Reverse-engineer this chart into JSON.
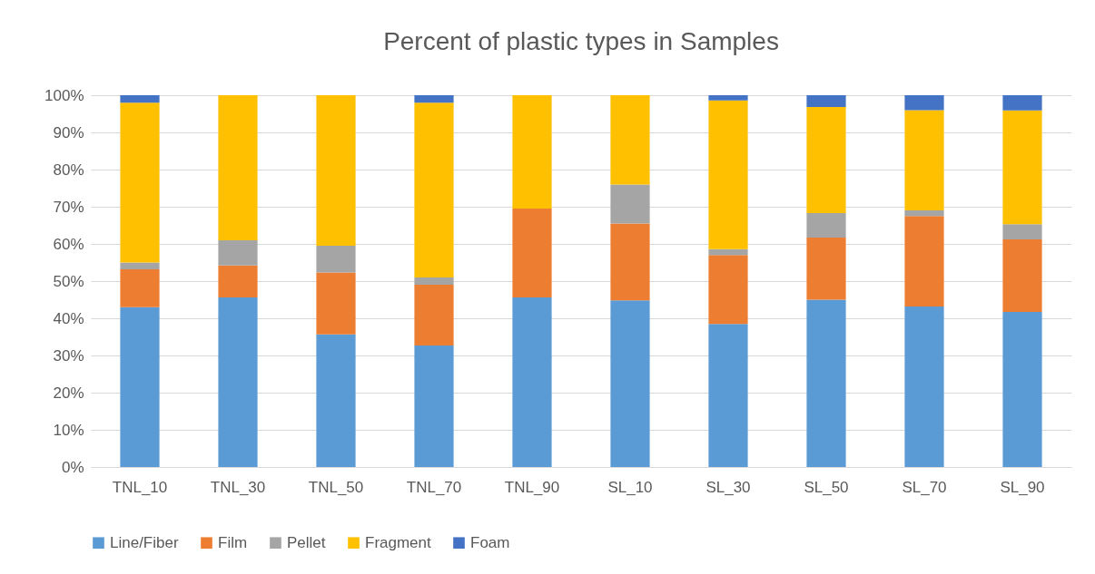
{
  "chart_data": {
    "type": "bar",
    "stacked": true,
    "title": "Percent of plastic types  in Samples",
    "categories": [
      "TNL_10",
      "TNL_30",
      "TNL_50",
      "TNL_70",
      "TNL_90",
      "SL_10",
      "SL_30",
      "SL_50",
      "SL_70",
      "SL_90"
    ],
    "series": [
      {
        "name": "Line/Fiber",
        "color": "#5b9bd5",
        "values": [
          43,
          45.6,
          35.7,
          32.7,
          45.6,
          44.8,
          38.5,
          45,
          43.2,
          41.7
        ]
      },
      {
        "name": "Film",
        "color": "#ed7d31",
        "values": [
          10.2,
          8.6,
          16.6,
          16.3,
          23.9,
          20.7,
          18.5,
          16.7,
          24.3,
          19.5
        ]
      },
      {
        "name": "Pellet",
        "color": "#a5a5a5",
        "values": [
          1.8,
          6.8,
          7.2,
          2,
          0,
          10.5,
          1.6,
          6.6,
          1.5,
          4.1
        ]
      },
      {
        "name": "Fragment",
        "color": "#ffc000",
        "values": [
          43,
          39,
          40.5,
          47,
          30.5,
          24,
          40,
          28.5,
          27,
          30.6
        ]
      },
      {
        "name": "Foam",
        "color": "#4472c4",
        "values": [
          2,
          0,
          0,
          2,
          0,
          0,
          1.4,
          3.2,
          4,
          4.1
        ]
      }
    ],
    "ylim": [
      0,
      100
    ],
    "yticks": [
      {
        "value": 0,
        "label": "0%"
      },
      {
        "value": 10,
        "label": "10%"
      },
      {
        "value": 20,
        "label": "20%"
      },
      {
        "value": 30,
        "label": "30%"
      },
      {
        "value": 40,
        "label": "40%"
      },
      {
        "value": 50,
        "label": "50%"
      },
      {
        "value": 60,
        "label": "60%"
      },
      {
        "value": 70,
        "label": "70%"
      },
      {
        "value": 80,
        "label": "80%"
      },
      {
        "value": 90,
        "label": "90%"
      },
      {
        "value": 100,
        "label": "100%"
      }
    ],
    "grid": "y",
    "legend": "bottom"
  }
}
